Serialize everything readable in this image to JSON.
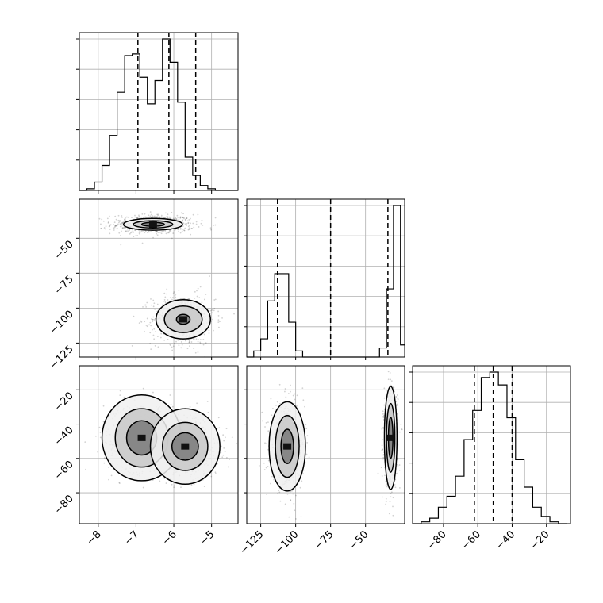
{
  "chart_data": {
    "type": "corner",
    "grid": true,
    "params": [
      {
        "range": [
          -8.5,
          -4.3
        ],
        "ticks": [
          -8,
          -7,
          -6,
          -5
        ],
        "tick_labels": [
          "−8",
          "−7",
          "−6",
          "−5"
        ]
      },
      {
        "range": [
          -135,
          -22
        ],
        "ticks": [
          -125,
          -100,
          -75,
          -50
        ],
        "tick_labels": [
          "−125",
          "−100",
          "−75",
          "−50"
        ]
      },
      {
        "range": [
          -98,
          -6
        ],
        "ticks": [
          -80,
          -60,
          -40,
          -20
        ],
        "tick_labels": [
          "−80",
          "−60",
          "−40",
          "−20"
        ]
      }
    ],
    "histograms": [
      {
        "param": 0,
        "edges": [
          -8.5,
          -8.3,
          -8.1,
          -7.9,
          -7.7,
          -7.5,
          -7.3,
          -7.1,
          -6.9,
          -6.7,
          -6.5,
          -6.3,
          -6.1,
          -5.9,
          -5.7,
          -5.5,
          -5.3,
          -5.1,
          -4.9,
          -4.7,
          -4.5,
          -4.3
        ],
        "counts": [
          0.0,
          0.01,
          0.05,
          0.15,
          0.33,
          0.59,
          0.81,
          0.82,
          0.68,
          0.52,
          0.66,
          0.91,
          0.77,
          0.53,
          0.2,
          0.09,
          0.03,
          0.01,
          0.0,
          0.0,
          0.0
        ],
        "quantile_lines": [
          -6.95,
          -6.13,
          -5.42
        ]
      },
      {
        "param": 1,
        "edges": [
          -135,
          -130,
          -125,
          -120,
          -115,
          -110,
          -105,
          -100,
          -95,
          -90,
          -85,
          -80,
          -75,
          -70,
          -65,
          -60,
          -55,
          -50,
          -45,
          -40,
          -35,
          -30,
          -25,
          -22
        ],
        "counts": [
          0.0,
          0.04,
          0.12,
          0.37,
          0.55,
          0.55,
          0.23,
          0.04,
          0.0,
          0.0,
          0.0,
          0.0,
          0.0,
          0.0,
          0.0,
          0.0,
          0.0,
          0.0,
          0.0,
          0.06,
          0.45,
          1.0,
          0.08
        ],
        "quantile_lines": [
          -113,
          -75,
          -34
        ]
      },
      {
        "param": 2,
        "edges": [
          -98,
          -93,
          -88,
          -83,
          -78,
          -73,
          -68,
          -63,
          -58,
          -53,
          -48,
          -43,
          -38,
          -33,
          -28,
          -23,
          -18,
          -13,
          -8
        ],
        "counts": [
          0.0,
          0.01,
          0.03,
          0.09,
          0.15,
          0.26,
          0.46,
          0.62,
          0.8,
          0.83,
          0.76,
          0.58,
          0.35,
          0.2,
          0.09,
          0.04,
          0.01,
          0.0
        ],
        "quantile_lines": [
          -62,
          -51,
          -40
        ]
      }
    ],
    "joint": [
      {
        "x_param": 0,
        "y_param": 1,
        "clusters": [
          {
            "center": [
              -6.55,
              -40
            ],
            "spread": [
              0.55,
              3.5
            ],
            "levels": [
              [
                0.78,
                4.2
              ],
              [
                0.52,
                2.6
              ],
              [
                0.3,
                1.4
              ]
            ],
            "n_points": 650
          },
          {
            "center": [
              -5.75,
              -108
            ],
            "spread": [
              0.42,
              9
            ],
            "levels": [
              [
                0.72,
                14
              ],
              [
                0.5,
                9.5
              ],
              [
                0.18,
                3.5
              ]
            ],
            "n_points": 650
          }
        ]
      },
      {
        "x_param": 0,
        "y_param": 2,
        "clusters": [
          {
            "center": [
              -6.85,
              -48
            ],
            "spread": [
              0.5,
              10
            ],
            "levels": [
              [
                1.05,
                25
              ],
              [
                0.7,
                17
              ],
              [
                0.4,
                10
              ]
            ],
            "n_points": 700
          },
          {
            "center": [
              -5.7,
              -53
            ],
            "spread": [
              0.45,
              9
            ],
            "levels": [
              [
                0.92,
                22
              ],
              [
                0.6,
                14
              ],
              [
                0.35,
                8
              ]
            ],
            "n_points": 700
          }
        ]
      },
      {
        "x_param": 1,
        "y_param": 2,
        "clusters": [
          {
            "center": [
              -106,
              -53
            ],
            "spread": [
              6,
              12
            ],
            "levels": [
              [
                13,
                26
              ],
              [
                8.5,
                18
              ],
              [
                4.5,
                10
              ]
            ],
            "n_points": 650
          },
          {
            "center": [
              -32,
              -48
            ],
            "spread": [
              2.5,
              14
            ],
            "levels": [
              [
                4.5,
                30
              ],
              [
                3,
                20
              ],
              [
                1.6,
                12
              ]
            ],
            "n_points": 650
          }
        ]
      }
    ]
  }
}
